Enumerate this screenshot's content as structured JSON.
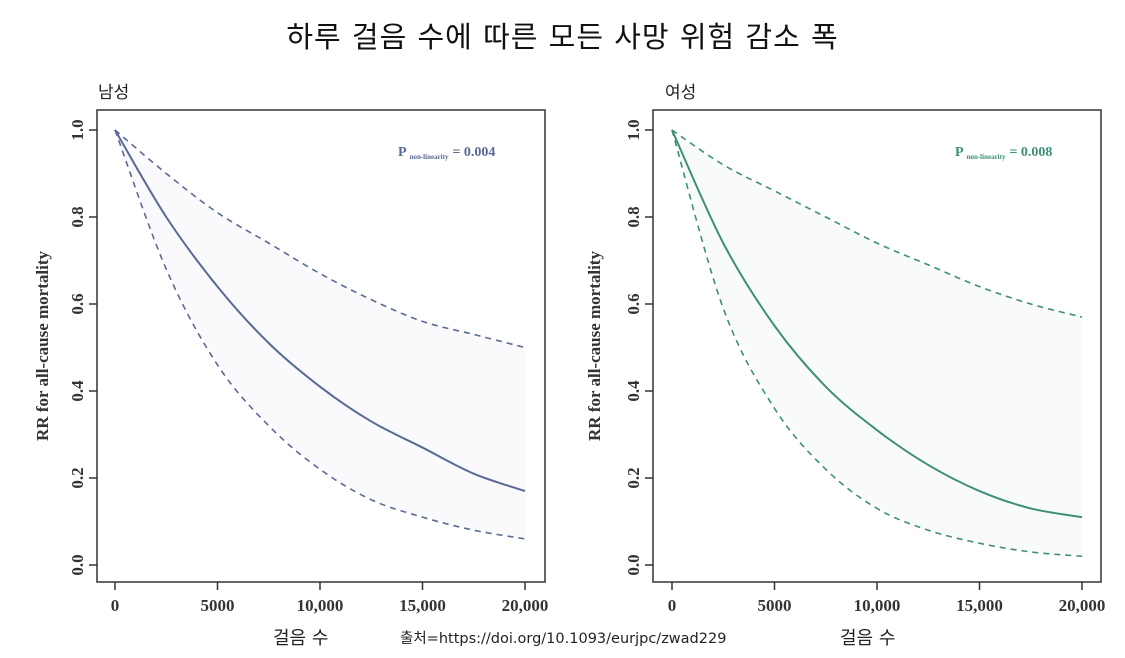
{
  "title": "하루 걸음 수에 따른 모든 사망 위험 감소 폭",
  "source": "출처=https://doi.org/10.1093/eurjpc/zwad229",
  "colors": {
    "male": "#5a6a96",
    "female": "#3d8f7a",
    "axis": "#333333"
  },
  "chart_data": [
    {
      "type": "line",
      "panel_label": "남성",
      "xlabel": "걸음 수",
      "ylabel": "RR for all-cause mortality",
      "xlim": [
        0,
        20000
      ],
      "ylim": [
        0,
        1
      ],
      "x_ticks": [
        "0",
        "5000",
        "10,000",
        "15,000",
        "20,000"
      ],
      "y_ticks": [
        "0.0",
        "0.2",
        "0.4",
        "0.6",
        "0.8",
        "1.0"
      ],
      "annotation": {
        "p_label": "P",
        "p_sub": "non-linearity",
        "p_value": "= 0.004"
      },
      "x": [
        0,
        2500,
        5000,
        7500,
        10000,
        12500,
        15000,
        17500,
        20000
      ],
      "series": [
        {
          "role": "estimate",
          "style": "solid",
          "values": [
            1.0,
            0.8,
            0.64,
            0.51,
            0.41,
            0.33,
            0.27,
            0.21,
            0.17
          ]
        },
        {
          "role": "upper",
          "style": "dashed",
          "values": [
            1.0,
            0.9,
            0.81,
            0.74,
            0.67,
            0.61,
            0.56,
            0.53,
            0.5
          ]
        },
        {
          "role": "lower",
          "style": "dashed",
          "values": [
            1.0,
            0.68,
            0.46,
            0.32,
            0.22,
            0.15,
            0.11,
            0.08,
            0.06
          ]
        }
      ]
    },
    {
      "type": "line",
      "panel_label": "여성",
      "xlabel": "걸음 수",
      "ylabel": "RR for all-cause mortality",
      "xlim": [
        0,
        20000
      ],
      "ylim": [
        0,
        1
      ],
      "x_ticks": [
        "0",
        "5000",
        "10,000",
        "15,000",
        "20,000"
      ],
      "y_ticks": [
        "0.0",
        "0.2",
        "0.4",
        "0.6",
        "0.8",
        "1.0"
      ],
      "annotation": {
        "p_label": "P",
        "p_sub": "non-linearity",
        "p_value": "= 0.008"
      },
      "x": [
        0,
        2500,
        5000,
        7500,
        10000,
        12500,
        15000,
        17500,
        20000
      ],
      "series": [
        {
          "role": "estimate",
          "style": "solid",
          "values": [
            1.0,
            0.74,
            0.55,
            0.41,
            0.31,
            0.23,
            0.17,
            0.13,
            0.11
          ]
        },
        {
          "role": "upper",
          "style": "dashed",
          "values": [
            1.0,
            0.92,
            0.86,
            0.8,
            0.74,
            0.69,
            0.64,
            0.6,
            0.57
          ]
        },
        {
          "role": "lower",
          "style": "dashed",
          "values": [
            1.0,
            0.59,
            0.36,
            0.22,
            0.13,
            0.08,
            0.05,
            0.03,
            0.02
          ]
        }
      ]
    }
  ]
}
